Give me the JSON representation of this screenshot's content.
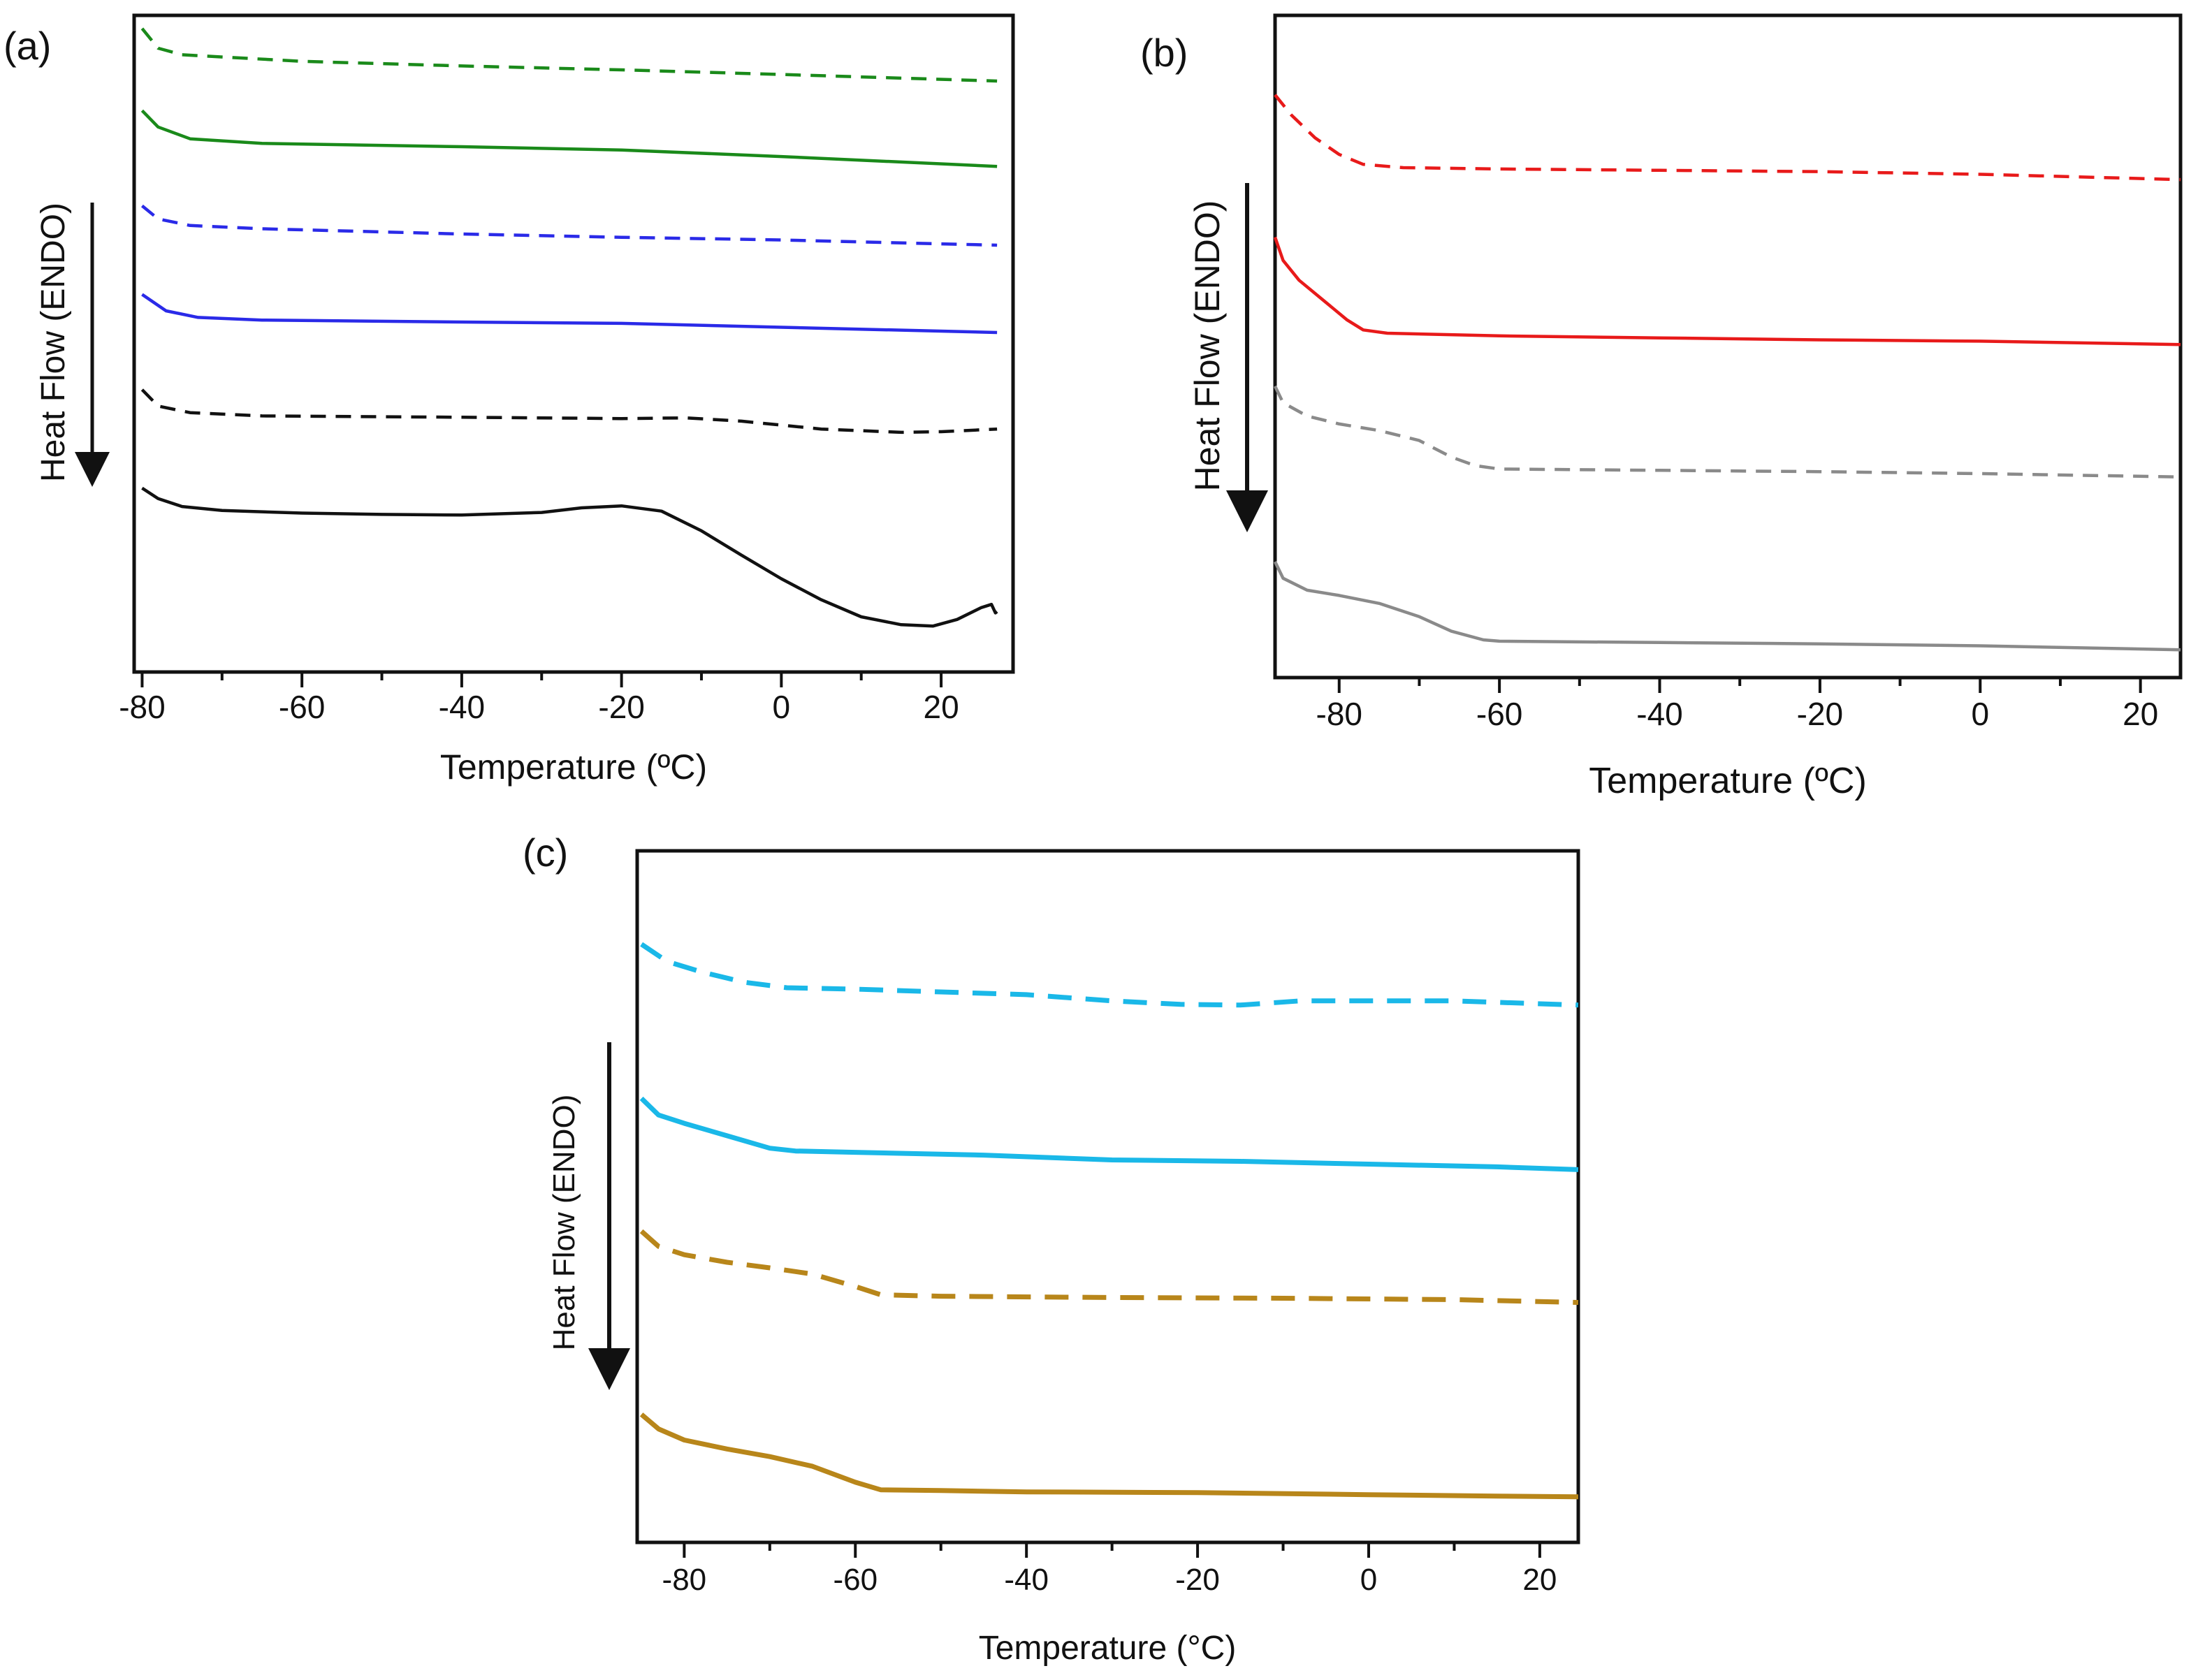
{
  "chart_data": [
    {
      "panel": "a",
      "panel_label": "(a)",
      "type": "line",
      "xlabel": "Temperature (ºC)",
      "ylabel": "Heat  Flow (ENDO)",
      "arrow_direction": "down",
      "xlim": [
        -81,
        29
      ],
      "ylim": [
        0,
        100
      ],
      "xticks": [
        -80,
        -60,
        -40,
        -20,
        0,
        20
      ],
      "xtick_labels": [
        "-80",
        "-60",
        "-40",
        "-20",
        "0",
        "20"
      ],
      "grid": false,
      "legend": "none",
      "series": [
        {
          "color": "#1a8a1a",
          "style": "dashed",
          "points": [
            [
              -80,
              98
            ],
            [
              -78,
              95
            ],
            [
              -75,
              94
            ],
            [
              -60,
              93
            ],
            [
              -40,
              92.3
            ],
            [
              -20,
              91.7
            ],
            [
              0,
              91
            ],
            [
              27,
              90
            ]
          ]
        },
        {
          "color": "#1a8a1a",
          "style": "solid",
          "points": [
            [
              -80,
              85.5
            ],
            [
              -78,
              83
            ],
            [
              -74,
              81.2
            ],
            [
              -65,
              80.5
            ],
            [
              -40,
              80
            ],
            [
              -20,
              79.5
            ],
            [
              0,
              78.5
            ],
            [
              27,
              77
            ]
          ]
        },
        {
          "color": "#2a2ae8",
          "style": "dashed",
          "points": [
            [
              -80,
              71
            ],
            [
              -78,
              69
            ],
            [
              -74,
              68
            ],
            [
              -65,
              67.5
            ],
            [
              -40,
              66.7
            ],
            [
              -20,
              66.2
            ],
            [
              0,
              65.8
            ],
            [
              27,
              65
            ]
          ]
        },
        {
          "color": "#2a2ae8",
          "style": "solid",
          "points": [
            [
              -80,
              57.5
            ],
            [
              -77,
              55
            ],
            [
              -73,
              54
            ],
            [
              -65,
              53.6
            ],
            [
              -40,
              53.3
            ],
            [
              -20,
              53.1
            ],
            [
              0,
              52.5
            ],
            [
              27,
              51.7
            ]
          ]
        },
        {
          "color": "#111111",
          "style": "dashed",
          "points": [
            [
              -80,
              43
            ],
            [
              -78,
              40.5
            ],
            [
              -74,
              39.5
            ],
            [
              -65,
              39
            ],
            [
              -40,
              38.8
            ],
            [
              -20,
              38.6
            ],
            [
              -12,
              38.7
            ],
            [
              -5,
              38.2
            ],
            [
              5,
              37
            ],
            [
              15,
              36.5
            ],
            [
              20,
              36.6
            ],
            [
              27,
              37
            ]
          ]
        },
        {
          "color": "#111111",
          "style": "solid",
          "points": [
            [
              -80,
              28
            ],
            [
              -78,
              26.4
            ],
            [
              -75,
              25.2
            ],
            [
              -70,
              24.6
            ],
            [
              -60,
              24.2
            ],
            [
              -50,
              24
            ],
            [
              -40,
              23.9
            ],
            [
              -30,
              24.3
            ],
            [
              -25,
              25
            ],
            [
              -20,
              25.3
            ],
            [
              -15,
              24.5
            ],
            [
              -10,
              21.5
            ],
            [
              -5,
              17.8
            ],
            [
              0,
              14.2
            ],
            [
              5,
              11
            ],
            [
              10,
              8.4
            ],
            [
              15,
              7.2
            ],
            [
              19,
              7
            ],
            [
              22,
              8
            ],
            [
              25,
              9.8
            ],
            [
              26.3,
              10.3
            ],
            [
              26.8,
              9
            ],
            [
              27,
              9.2
            ]
          ]
        }
      ]
    },
    {
      "panel": "b",
      "panel_label": "(b)",
      "type": "line",
      "xlabel": "Temperature (ºC)",
      "ylabel": "Heat  Flow (ENDO)",
      "arrow_direction": "down",
      "xlim": [
        -88,
        25
      ],
      "ylim": [
        0,
        100
      ],
      "xticks": [
        -80,
        -60,
        -40,
        -20,
        0,
        20
      ],
      "xtick_labels": [
        "-80",
        "-60",
        "-40",
        "-20",
        "0",
        "20"
      ],
      "grid": false,
      "legend": "none",
      "series": [
        {
          "color": "#e81a1a",
          "style": "dashed",
          "points": [
            [
              -88,
              88
            ],
            [
              -86,
              85
            ],
            [
              -83,
              81.5
            ],
            [
              -80,
              79
            ],
            [
              -77,
              77.5
            ],
            [
              -72,
              77
            ],
            [
              -60,
              76.8
            ],
            [
              -40,
              76.6
            ],
            [
              -20,
              76.4
            ],
            [
              0,
              76
            ],
            [
              25,
              75.2
            ]
          ]
        },
        {
          "color": "#e81a1a",
          "style": "solid",
          "points": [
            [
              -88,
              66.5
            ],
            [
              -87,
              63
            ],
            [
              -85,
              60
            ],
            [
              -82,
              57
            ],
            [
              -79,
              54
            ],
            [
              -77,
              52.5
            ],
            [
              -74,
              52
            ],
            [
              -60,
              51.6
            ],
            [
              -40,
              51.3
            ],
            [
              -20,
              51
            ],
            [
              0,
              50.8
            ],
            [
              25,
              50.3
            ]
          ]
        },
        {
          "color": "#8a8a8a",
          "style": "dashed",
          "points": [
            [
              -88,
              44
            ],
            [
              -87,
              41.5
            ],
            [
              -84,
              39.5
            ],
            [
              -80,
              38.3
            ],
            [
              -75,
              37.3
            ],
            [
              -70,
              35.8
            ],
            [
              -66,
              33.3
            ],
            [
              -63,
              32
            ],
            [
              -60,
              31.5
            ],
            [
              -40,
              31.3
            ],
            [
              -20,
              31.1
            ],
            [
              0,
              30.8
            ],
            [
              25,
              30.3
            ]
          ]
        },
        {
          "color": "#8a8a8a",
          "style": "solid",
          "points": [
            [
              -88,
              17.5
            ],
            [
              -87,
              15
            ],
            [
              -84,
              13.2
            ],
            [
              -80,
              12.4
            ],
            [
              -75,
              11.2
            ],
            [
              -70,
              9.2
            ],
            [
              -66,
              7
            ],
            [
              -62,
              5.7
            ],
            [
              -60,
              5.5
            ],
            [
              -40,
              5.3
            ],
            [
              -20,
              5.1
            ],
            [
              0,
              4.8
            ],
            [
              25,
              4.2
            ]
          ]
        }
      ]
    },
    {
      "panel": "c",
      "panel_label": "(c)",
      "type": "line",
      "xlabel": "Temperature (°C)",
      "ylabel": "Heat Flow (ENDO)",
      "arrow_direction": "down",
      "xlim": [
        -85.5,
        24.5
      ],
      "ylim": [
        0,
        100
      ],
      "xticks": [
        -80,
        -60,
        -40,
        -20,
        0,
        20
      ],
      "xtick_labels": [
        "-80",
        "-60",
        "-40",
        "-20",
        "0",
        "20"
      ],
      "grid": false,
      "legend": "none",
      "series": [
        {
          "color": "#1ab8e8",
          "style": "dashed",
          "points": [
            [
              -85,
              86.5
            ],
            [
              -82,
              84
            ],
            [
              -78,
              82.5
            ],
            [
              -73,
              81
            ],
            [
              -68,
              80.2
            ],
            [
              -60,
              80
            ],
            [
              -50,
              79.6
            ],
            [
              -40,
              79.2
            ],
            [
              -30,
              78.3
            ],
            [
              -22,
              77.8
            ],
            [
              -15,
              77.7
            ],
            [
              -8,
              78.3
            ],
            [
              0,
              78.3
            ],
            [
              10,
              78.3
            ],
            [
              24.5,
              77.7
            ]
          ]
        },
        {
          "color": "#1ab8e8",
          "style": "solid",
          "points": [
            [
              -85,
              64.2
            ],
            [
              -83,
              61.8
            ],
            [
              -80,
              60.6
            ],
            [
              -75,
              58.8
            ],
            [
              -70,
              57
            ],
            [
              -67,
              56.6
            ],
            [
              -60,
              56.4
            ],
            [
              -45,
              56
            ],
            [
              -30,
              55.3
            ],
            [
              -15,
              55.1
            ],
            [
              0,
              54.7
            ],
            [
              15,
              54.3
            ],
            [
              24.5,
              53.9
            ]
          ]
        },
        {
          "color": "#b8861a",
          "style": "dashed",
          "points": [
            [
              -85,
              45
            ],
            [
              -83,
              42.8
            ],
            [
              -80,
              41.6
            ],
            [
              -75,
              40.5
            ],
            [
              -70,
              39.7
            ],
            [
              -65,
              38.8
            ],
            [
              -60,
              37
            ],
            [
              -57,
              35.8
            ],
            [
              -50,
              35.6
            ],
            [
              -30,
              35.4
            ],
            [
              -10,
              35.3
            ],
            [
              10,
              35.1
            ],
            [
              24.5,
              34.7
            ]
          ]
        },
        {
          "color": "#b8861a",
          "style": "solid",
          "points": [
            [
              -85,
              18.5
            ],
            [
              -83,
              16.4
            ],
            [
              -80,
              14.8
            ],
            [
              -75,
              13.5
            ],
            [
              -70,
              12.4
            ],
            [
              -65,
              11
            ],
            [
              -60,
              8.7
            ],
            [
              -57,
              7.6
            ],
            [
              -50,
              7.5
            ],
            [
              -40,
              7.3
            ],
            [
              -20,
              7.2
            ],
            [
              0,
              6.9
            ],
            [
              15,
              6.7
            ],
            [
              24.5,
              6.6
            ]
          ]
        }
      ]
    }
  ]
}
